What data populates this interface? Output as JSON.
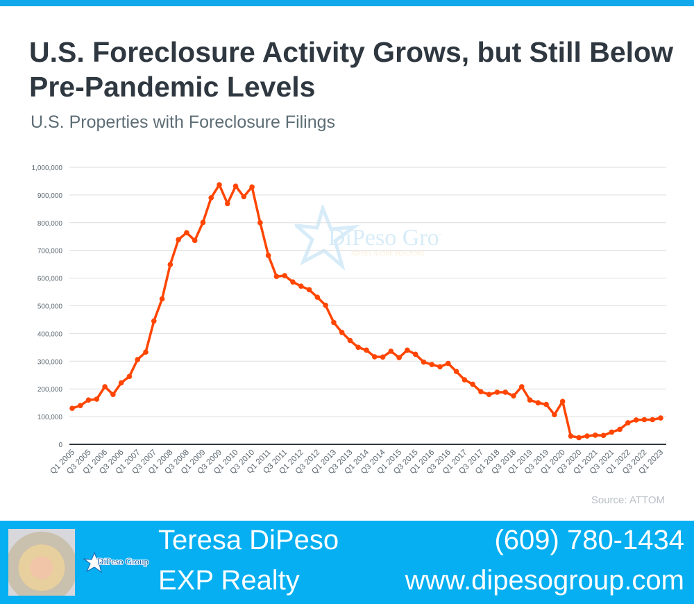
{
  "title": "U.S. Foreclosure Activity Grows, but Still Below Pre-Pandemic Levels",
  "subtitle": "U.S. Properties with Foreclosure Filings",
  "source": "Source: ATTOM",
  "watermark": {
    "name": "DiPeso Group",
    "tagline": "JERSEY SHORE REALTORS"
  },
  "footer": {
    "name": "Teresa DiPeso",
    "company": "EXP Realty",
    "phone": "(609) 780-1434",
    "website": "www.dipesogroup.com",
    "logo_text": "DiPeso Group"
  },
  "colors": {
    "line": "#ff4500",
    "footer": "#05aff2",
    "grid": "#dddddd"
  },
  "chart_data": {
    "type": "line",
    "title": "U.S. Properties with Foreclosure Filings",
    "xlabel": "",
    "ylabel": "",
    "ylim": [
      0,
      1000000
    ],
    "yticks": [
      0,
      100000,
      200000,
      300000,
      400000,
      500000,
      600000,
      700000,
      800000,
      900000,
      1000000
    ],
    "ytick_labels": [
      "0",
      "100,000",
      "200,000",
      "300,000",
      "400,000",
      "500,000",
      "600,000",
      "700,000",
      "800,000",
      "900,000",
      "1,000,000"
    ],
    "xtick_labels": [
      "Q1 2005",
      "Q3 2005",
      "Q1 2006",
      "Q3 2006",
      "Q1 2007",
      "Q3 2007",
      "Q1 2008",
      "Q3 2008",
      "Q1 2009",
      "Q3 2009",
      "Q1 2010",
      "Q3 2010",
      "Q1 2011",
      "Q3 2011",
      "Q1 2012",
      "Q3 2012",
      "Q1 2013",
      "Q3 2013",
      "Q1 2014",
      "Q3 2014",
      "Q1 2015",
      "Q3 2015",
      "Q1 2016",
      "Q3 2016",
      "Q1 2017",
      "Q3 2017",
      "Q1 2018",
      "Q3 2018",
      "Q1 2019",
      "Q3 2019",
      "Q1 2020",
      "Q3 2020",
      "Q1 2021",
      "Q3 2021",
      "Q1 2022",
      "Q3 2022",
      "Q1 2023"
    ],
    "grid": true,
    "series": [
      {
        "name": "Properties with foreclosure filings",
        "values": [
          130000,
          140000,
          160000,
          163000,
          208000,
          180000,
          222000,
          245000,
          306000,
          333000,
          445000,
          525000,
          649000,
          739000,
          764000,
          736000,
          801000,
          890000,
          937000,
          869000,
          932000,
          894000,
          929000,
          800000,
          682000,
          606000,
          609000,
          586000,
          571000,
          558000,
          531000,
          502000,
          440000,
          404000,
          375000,
          350000,
          340000,
          316000,
          315000,
          336000,
          313000,
          340000,
          325000,
          297000,
          288000,
          280000,
          292000,
          263000,
          233000,
          217000,
          190000,
          180000,
          188000,
          188000,
          175000,
          208000,
          160000,
          150000,
          144000,
          107000,
          155000,
          30000,
          24000,
          30000,
          33000,
          32000,
          44000,
          54000,
          78000,
          88000,
          89000,
          89000,
          95000
        ]
      }
    ]
  }
}
